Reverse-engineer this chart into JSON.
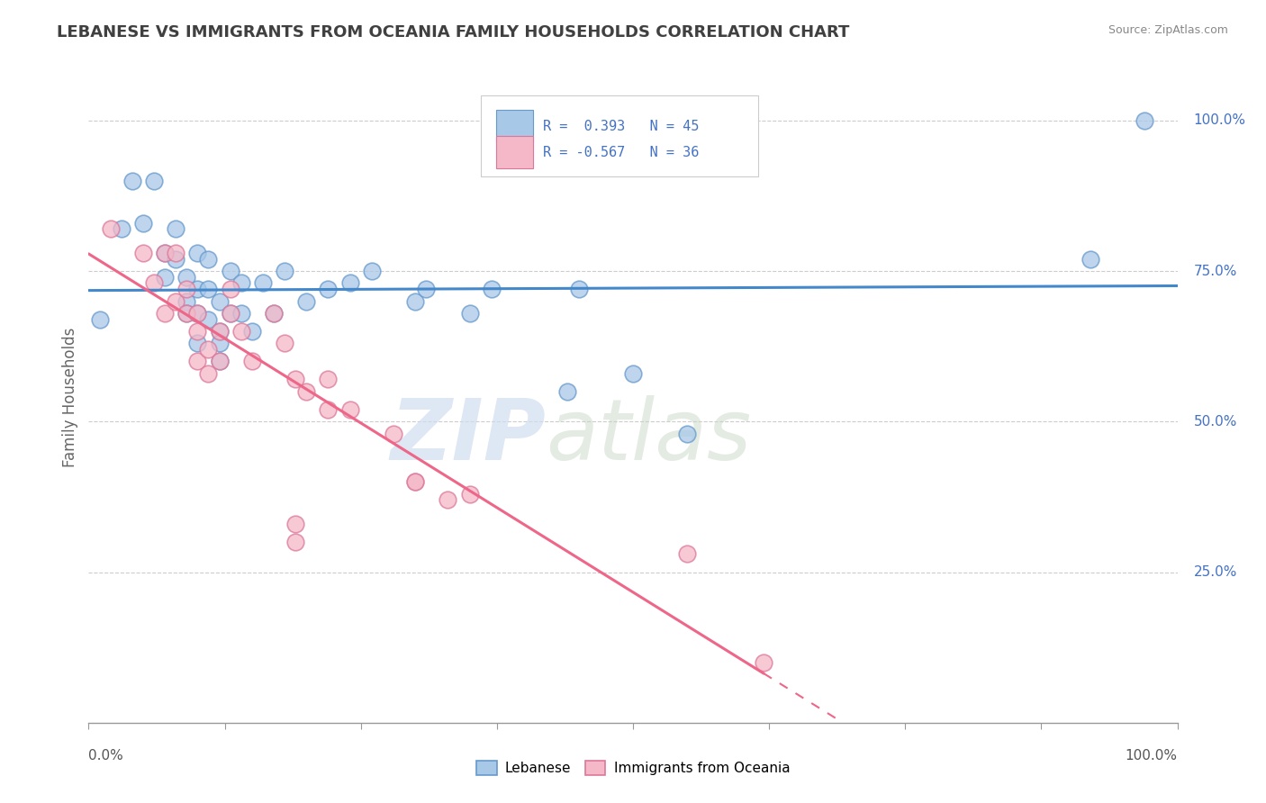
{
  "title": "LEBANESE VS IMMIGRANTS FROM OCEANIA FAMILY HOUSEHOLDS CORRELATION CHART",
  "source": "Source: ZipAtlas.com",
  "ylabel": "Family Households",
  "watermark_zip": "ZIP",
  "watermark_atlas": "atlas",
  "legend_r_blue": "0.393",
  "legend_n_blue": "45",
  "legend_r_pink": "-0.567",
  "legend_n_pink": "36",
  "legend_label_blue": "Lebanese",
  "legend_label_pink": "Immigrants from Oceania",
  "blue_scatter_color": "#a8c8e8",
  "blue_scatter_edge": "#6699cc",
  "pink_scatter_color": "#f4b8c8",
  "pink_scatter_edge": "#dd7799",
  "blue_line_color": "#4488cc",
  "pink_line_color": "#ee6688",
  "axis_color": "#4472c4",
  "title_color": "#404040",
  "bg_color": "#ffffff",
  "grid_color": "#cccccc",
  "ytick_labels": [
    "100.0%",
    "75.0%",
    "50.0%",
    "25.0%"
  ],
  "ytick_vals": [
    1.0,
    0.75,
    0.5,
    0.25
  ],
  "xtick_positions": [
    0.0,
    0.125,
    0.25,
    0.375,
    0.5,
    0.625,
    0.75,
    0.875,
    1.0
  ],
  "blue_x": [
    0.01,
    0.04,
    0.06,
    0.03,
    0.05,
    0.07,
    0.07,
    0.08,
    0.08,
    0.09,
    0.09,
    0.09,
    0.1,
    0.1,
    0.1,
    0.1,
    0.11,
    0.11,
    0.11,
    0.12,
    0.12,
    0.12,
    0.12,
    0.13,
    0.13,
    0.14,
    0.14,
    0.15,
    0.16,
    0.17,
    0.18,
    0.2,
    0.22,
    0.24,
    0.26,
    0.3,
    0.31,
    0.35,
    0.37,
    0.44,
    0.45,
    0.5,
    0.55,
    0.92,
    0.97
  ],
  "blue_y": [
    0.67,
    0.9,
    0.9,
    0.82,
    0.83,
    0.78,
    0.74,
    0.82,
    0.77,
    0.74,
    0.7,
    0.68,
    0.78,
    0.72,
    0.68,
    0.63,
    0.77,
    0.72,
    0.67,
    0.7,
    0.65,
    0.63,
    0.6,
    0.75,
    0.68,
    0.73,
    0.68,
    0.65,
    0.73,
    0.68,
    0.75,
    0.7,
    0.72,
    0.73,
    0.75,
    0.7,
    0.72,
    0.68,
    0.72,
    0.55,
    0.72,
    0.58,
    0.48,
    0.77,
    1.0
  ],
  "pink_x": [
    0.02,
    0.05,
    0.06,
    0.07,
    0.07,
    0.08,
    0.08,
    0.09,
    0.09,
    0.1,
    0.1,
    0.1,
    0.11,
    0.11,
    0.12,
    0.12,
    0.13,
    0.13,
    0.14,
    0.15,
    0.17,
    0.18,
    0.2,
    0.19,
    0.22,
    0.22,
    0.24,
    0.28,
    0.3,
    0.33,
    0.35,
    0.19,
    0.55,
    0.62,
    0.3,
    0.19
  ],
  "pink_y": [
    0.82,
    0.78,
    0.73,
    0.78,
    0.68,
    0.78,
    0.7,
    0.72,
    0.68,
    0.68,
    0.65,
    0.6,
    0.62,
    0.58,
    0.65,
    0.6,
    0.72,
    0.68,
    0.65,
    0.6,
    0.68,
    0.63,
    0.55,
    0.57,
    0.52,
    0.57,
    0.52,
    0.48,
    0.4,
    0.37,
    0.38,
    0.3,
    0.28,
    0.1,
    0.4,
    0.33
  ]
}
